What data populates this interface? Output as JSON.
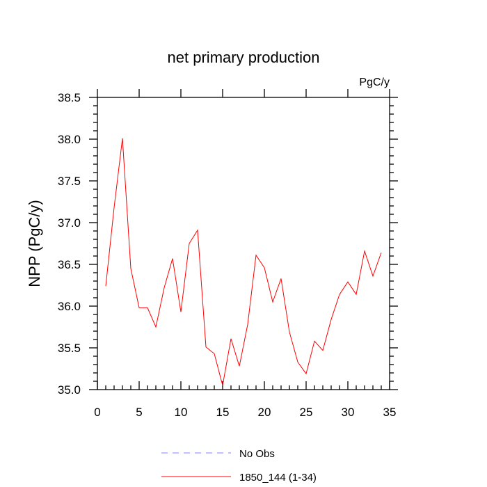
{
  "chart_data": {
    "type": "line",
    "title": "net primary production",
    "units_label": "PgC/y",
    "ylabel": "NPP  (PgC/y)",
    "xlabel": "",
    "xlim": [
      0,
      35
    ],
    "ylim": [
      35.0,
      38.5
    ],
    "x_ticks": [
      0,
      5,
      10,
      15,
      20,
      25,
      30,
      35
    ],
    "x_tick_labels": [
      "0",
      "5",
      "10",
      "15",
      "20",
      "25",
      "30",
      "35"
    ],
    "y_ticks": [
      35.0,
      35.5,
      36.0,
      36.5,
      37.0,
      37.5,
      38.0,
      38.5
    ],
    "y_tick_labels": [
      "35.0",
      "35.5",
      "36.0",
      "36.5",
      "37.0",
      "37.5",
      "38.0",
      "38.5"
    ],
    "grid": false,
    "legend_position": "bottom",
    "series": [
      {
        "name": "1850_144 (1-34)",
        "color": "#ff0000",
        "style": "solid",
        "x": [
          1,
          2,
          3,
          4,
          5,
          6,
          7,
          8,
          9,
          10,
          11,
          12,
          13,
          14,
          15,
          16,
          17,
          18,
          19,
          20,
          21,
          22,
          23,
          24,
          25,
          26,
          27,
          28,
          29,
          30,
          31,
          32,
          33,
          34
        ],
        "y": [
          36.24,
          37.18,
          38.01,
          36.45,
          35.98,
          35.98,
          35.75,
          36.22,
          36.57,
          35.93,
          36.75,
          36.91,
          35.51,
          35.43,
          35.05,
          35.61,
          35.28,
          35.78,
          36.61,
          36.46,
          36.05,
          36.33,
          35.69,
          35.33,
          35.19,
          35.58,
          35.47,
          35.84,
          36.14,
          36.29,
          36.14,
          36.66,
          36.36,
          36.64
        ]
      }
    ],
    "legend": [
      {
        "label": "No Obs",
        "color": "#8080ff",
        "style": "dashed"
      },
      {
        "label": "1850_144 (1-34)",
        "color": "#ff0000",
        "style": "solid"
      }
    ]
  }
}
